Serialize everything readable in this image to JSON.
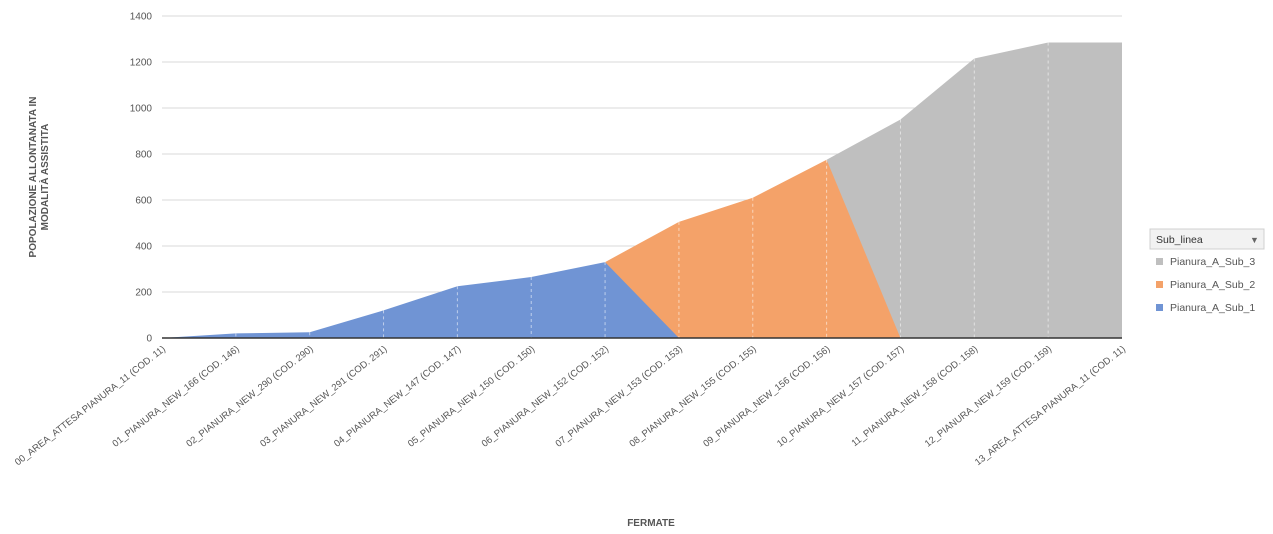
{
  "chart_data": {
    "type": "area",
    "title": "",
    "xlabel": "FERMATE",
    "ylabel_lines": [
      "POPOLAZIONE ALLONTANATA IN",
      "MODALITÀ ASSISTITA"
    ],
    "ylim": [
      0,
      1400
    ],
    "yticks": [
      0,
      200,
      400,
      600,
      800,
      1000,
      1200,
      1400
    ],
    "grid": true,
    "categories": [
      "00_AREA_ATTESA PIANURA_11 (COD. 11)",
      "01_PIANURA_NEW_166 (COD. 146)",
      "02_PIANURA_NEW_290 (COD. 290)",
      "03_PIANURA_NEW_291 (COD. 291)",
      "04_PIANURA_NEW_147 (COD. 147)",
      "05_PIANURA_NEW_150 (COD. 150)",
      "06_PIANURA_NEW_152 (COD. 152)",
      "07_PIANURA_NEW_153 (COD. 153)",
      "08_PIANURA_NEW_155 (COD. 155)",
      "09_PIANURA_NEW_156 (COD. 156)",
      "10_PIANURA_NEW_157 (COD. 157)",
      "11_PIANURA_NEW_158 (COD. 158)",
      "12_PIANURA_NEW_159 (COD. 159)",
      "13_AREA_ATTESA PIANURA_11 (COD. 11)"
    ],
    "legend_title": "Sub_linea",
    "legend_position": "right",
    "series": [
      {
        "name": "Pianura_A_Sub_3",
        "color": "#BFBFBF",
        "values": [
          0,
          0,
          0,
          0,
          0,
          0,
          0,
          0,
          0,
          775,
          950,
          1215,
          1285,
          1285
        ]
      },
      {
        "name": "Pianura_A_Sub_2",
        "color": "#F4A269",
        "values": [
          0,
          0,
          0,
          0,
          0,
          0,
          330,
          505,
          610,
          775,
          0,
          0,
          0,
          0
        ]
      },
      {
        "name": "Pianura_A_Sub_1",
        "color": "#7094D4",
        "values": [
          0,
          20,
          25,
          120,
          225,
          265,
          330,
          0,
          0,
          0,
          0,
          0,
          0,
          0
        ]
      }
    ]
  }
}
